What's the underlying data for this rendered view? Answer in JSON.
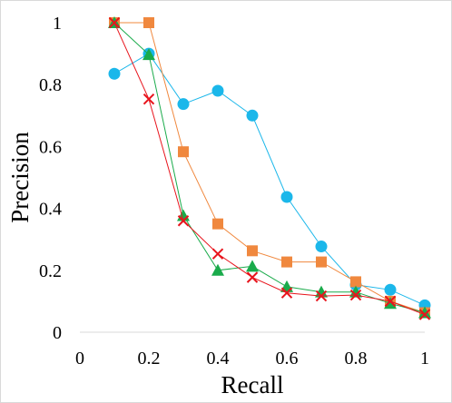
{
  "chart_data": {
    "type": "line",
    "xlabel": "Recall",
    "ylabel": "Precision",
    "xlim": [
      0,
      1
    ],
    "ylim": [
      0,
      1
    ],
    "x_ticks": [
      "0",
      "0.2",
      "0.4",
      "0.6",
      "0.8",
      "1"
    ],
    "y_ticks": [
      "0",
      "0.2",
      "0.4",
      "0.6",
      "0.8",
      "1"
    ],
    "x_tick_values": [
      0,
      0.2,
      0.4,
      0.6,
      0.8,
      1
    ],
    "y_tick_values": [
      0,
      0.2,
      0.4,
      0.6,
      0.8,
      1
    ],
    "grid": false,
    "legend": "none",
    "x": [
      0.1,
      0.2,
      0.3,
      0.4,
      0.5,
      0.6,
      0.7,
      0.8,
      0.9,
      1.0
    ],
    "series": [
      {
        "marker": "circle",
        "color": "#1bb7ea",
        "values": [
          0.835,
          0.9,
          0.737,
          0.78,
          0.7,
          0.437,
          0.277,
          0.153,
          0.137,
          0.087
        ]
      },
      {
        "marker": "square",
        "color": "#f0883e",
        "values": [
          1.0,
          1.0,
          0.583,
          0.35,
          0.263,
          0.227,
          0.227,
          0.163,
          0.1,
          0.063
        ]
      },
      {
        "marker": "triangle",
        "color": "#1aab4b",
        "values": [
          1.0,
          0.897,
          0.377,
          0.2,
          0.213,
          0.147,
          0.13,
          0.13,
          0.093,
          0.063
        ]
      },
      {
        "marker": "x",
        "color": "#e8141c",
        "values": [
          1.0,
          0.753,
          0.36,
          0.253,
          0.177,
          0.127,
          0.117,
          0.12,
          0.1,
          0.057
        ]
      }
    ]
  }
}
